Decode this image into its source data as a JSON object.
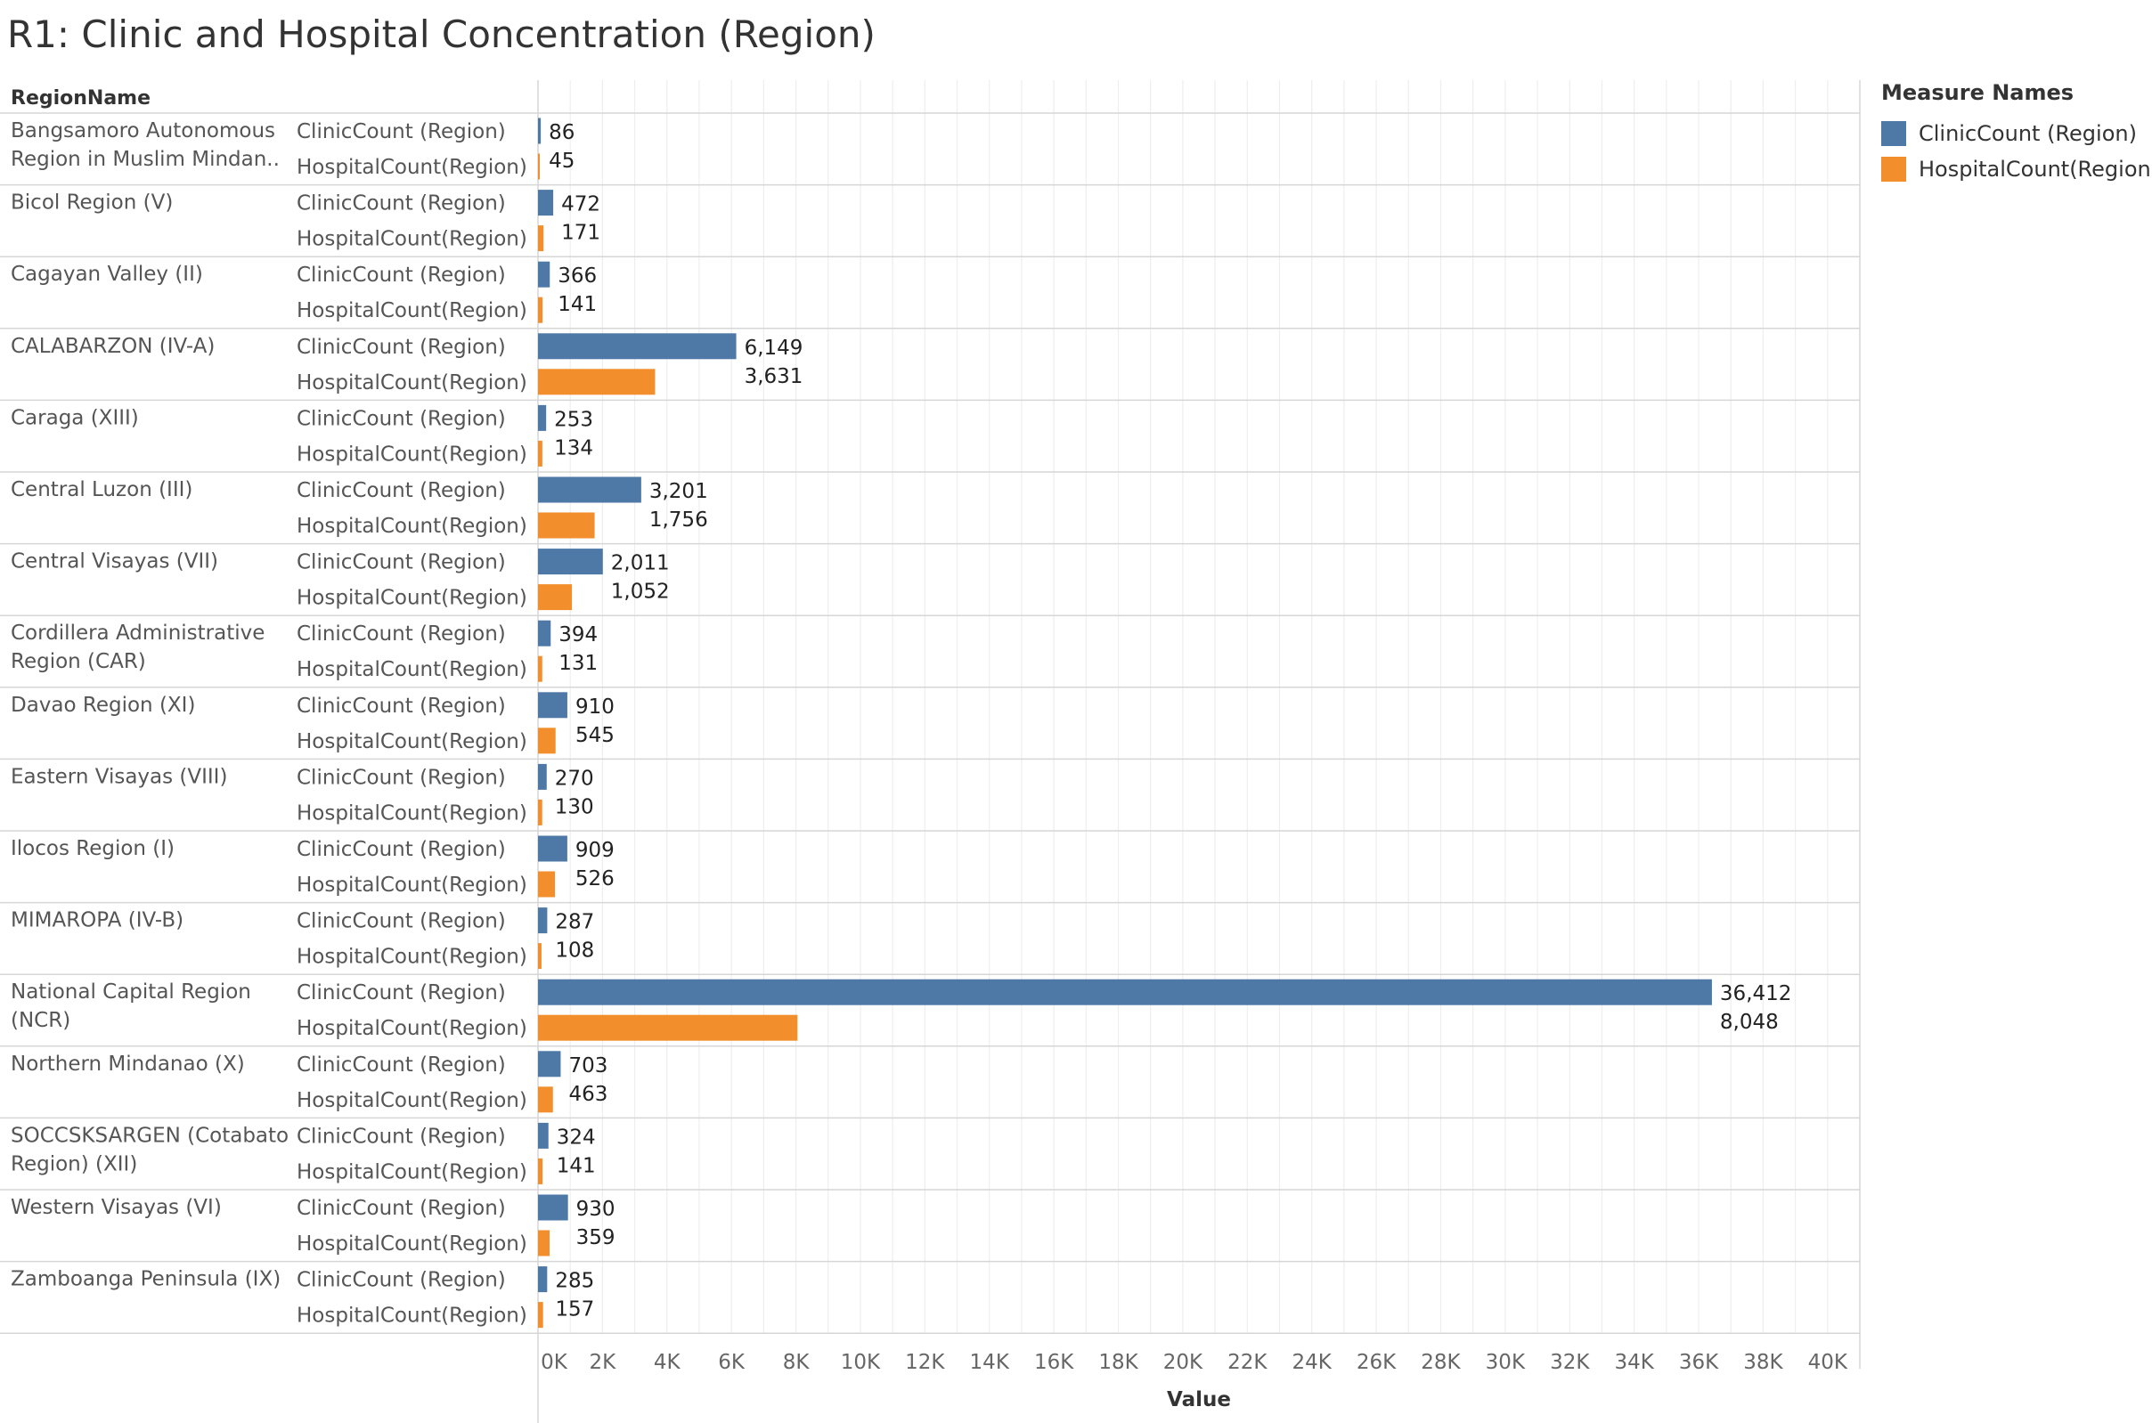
{
  "chart_data": {
    "type": "bar",
    "orientation": "horizontal",
    "title": "R1: Clinic and Hospital Concentration (Region)",
    "row_header": "RegionName",
    "xlabel": "Value",
    "xlim": [
      0,
      41000
    ],
    "xticks": [
      "0K",
      "2K",
      "4K",
      "6K",
      "8K",
      "10K",
      "12K",
      "14K",
      "16K",
      "18K",
      "20K",
      "22K",
      "24K",
      "26K",
      "28K",
      "30K",
      "32K",
      "34K",
      "36K",
      "38K",
      "40K"
    ],
    "legend": {
      "title": "Measure Names",
      "placement": "top-right",
      "items": [
        {
          "label": "ClinicCount (Region)",
          "color": "#4e79a7"
        },
        {
          "label": "HospitalCount(Region)",
          "color": "#f28e2b"
        }
      ]
    },
    "categories": [
      [
        "Bangsamoro Autonomous",
        "Region in Muslim Mindan.."
      ],
      [
        "Bicol Region (V)"
      ],
      [
        "Cagayan Valley (II)"
      ],
      [
        "CALABARZON (IV-A)"
      ],
      [
        "Caraga (XIII)"
      ],
      [
        "Central Luzon (III)"
      ],
      [
        "Central Visayas (VII)"
      ],
      [
        "Cordillera Administrative",
        "Region (CAR)"
      ],
      [
        "Davao Region (XI)"
      ],
      [
        "Eastern Visayas (VIII)"
      ],
      [
        "Ilocos Region (I)"
      ],
      [
        "MIMAROPA (IV-B)"
      ],
      [
        "National Capital Region",
        "(NCR)"
      ],
      [
        "Northern Mindanao (X)"
      ],
      [
        "SOCCSKSARGEN (Cotabato",
        "Region) (XII)"
      ],
      [
        "Western Visayas (VI)"
      ],
      [
        "Zamboanga Peninsula (IX)"
      ]
    ],
    "series": [
      {
        "name": "ClinicCount (Region)",
        "color": "#4e79a7",
        "values": [
          86,
          472,
          366,
          6149,
          253,
          3201,
          2011,
          394,
          910,
          270,
          909,
          287,
          36412,
          703,
          324,
          930,
          285
        ],
        "labels": [
          "86",
          "472",
          "366",
          "6,149",
          "253",
          "3,201",
          "2,011",
          "394",
          "910",
          "270",
          "909",
          "287",
          "36,412",
          "703",
          "324",
          "930",
          "285"
        ]
      },
      {
        "name": "HospitalCount(Region)",
        "color": "#f28e2b",
        "values": [
          45,
          171,
          141,
          3631,
          134,
          1756,
          1052,
          131,
          545,
          130,
          526,
          108,
          8048,
          463,
          141,
          359,
          157
        ],
        "labels": [
          "45",
          "171",
          "141",
          "3,631",
          "134",
          "1,756",
          "1,052",
          "131",
          "545",
          "130",
          "526",
          "108",
          "8,048",
          "463",
          "141",
          "359",
          "157"
        ]
      }
    ]
  }
}
